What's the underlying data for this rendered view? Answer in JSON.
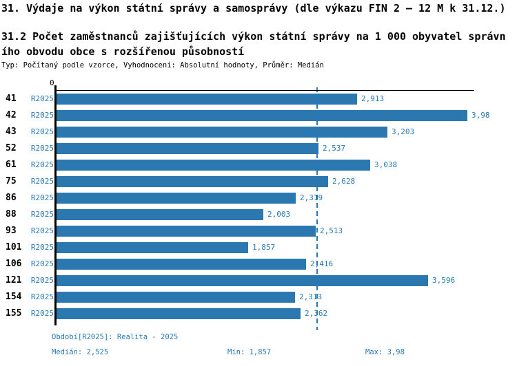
{
  "title": "31. Výdaje na výkon státní správy a samosprávy (dle výkazu FIN 2 – 12 M k 31.12.)",
  "subtitle_lines": [
    "31.2 Počet zaměstnanců zajišťujících výkon státní správy na 1 000 obyvatel správn",
    "ího obvodu obce s rozšířenou působností"
  ],
  "meta": "Typ: Počítaný podle vzorce, Vyhodnocení: Absolutní hodnoty, Průměr: Medián",
  "chart_data": {
    "type": "bar",
    "orientation": "horizontal",
    "title": "31.2 Počet zaměstnanců zajišťujících výkon státní správy na 1 000 obyvatel správního obvodu obce s rozšířenou působností",
    "categories": [
      "41",
      "42",
      "43",
      "52",
      "61",
      "75",
      "86",
      "88",
      "93",
      "101",
      "106",
      "121",
      "154",
      "155"
    ],
    "series_label": "R2025",
    "values": [
      2.913,
      3.98,
      3.203,
      2.537,
      3.038,
      2.628,
      2.319,
      2.003,
      2.513,
      1.857,
      2.416,
      3.596,
      2.313,
      2.362
    ],
    "value_labels": [
      "2,913",
      "3,98",
      "3,203",
      "2,537",
      "3,038",
      "2,628",
      "2,319",
      "2,003",
      "2,513",
      "1,857",
      "2,416",
      "3,596",
      "2,313",
      "2,362"
    ],
    "x_tick_zero": "0",
    "xlim": [
      0,
      4.06
    ],
    "median": 2.525,
    "min": 1.857,
    "max": 3.98,
    "grid": false,
    "median_line": "dashed-vertical"
  },
  "footer": {
    "period": "Období[R2025]: Realita - 2025",
    "median": "Medián: 2,525",
    "min": "Min: 1,857",
    "max": "Max: 3,98"
  },
  "colors": {
    "bar": "#2b78b1",
    "accent_text": "#2878b4",
    "text": "#000000",
    "background": "#ffffff"
  }
}
